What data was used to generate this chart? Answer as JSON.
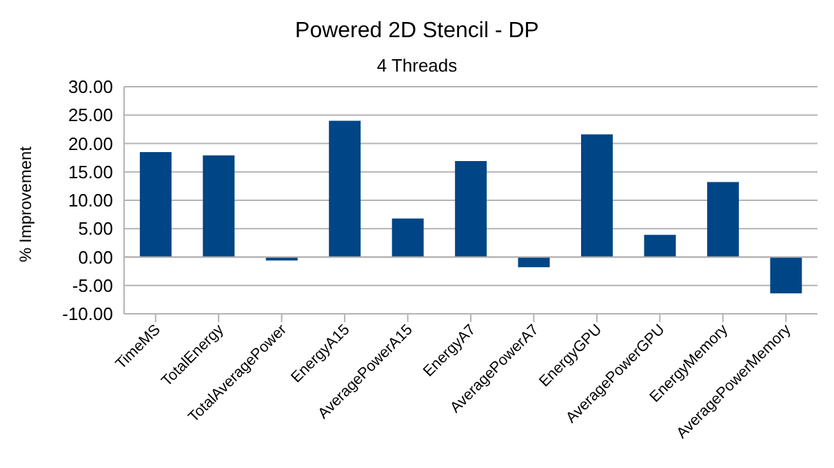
{
  "chart_data": {
    "type": "bar",
    "title": "Powered 2D Stencil - DP",
    "subtitle": "4 Threads",
    "ylabel": "% Improvement",
    "categories": [
      "TimeMS",
      "TotalEnergy",
      "TotalAveragePower",
      "EnergyA15",
      "AveragePowerA15",
      "EnergyA7",
      "AveragePowerA7",
      "EnergyGPU",
      "AveragePowerGPU",
      "EnergyMemory",
      "AveragePowerMemory"
    ],
    "values": [
      18.5,
      17.9,
      -0.6,
      24.0,
      6.8,
      16.9,
      -1.8,
      21.6,
      3.9,
      13.2,
      -6.4
    ],
    "color": "#004586",
    "ylim": [
      -10,
      30
    ],
    "yticks": [
      {
        "value": -10,
        "label": "-10.00"
      },
      {
        "value": -5,
        "label": "-5.00"
      },
      {
        "value": 0,
        "label": "0.00"
      },
      {
        "value": 5,
        "label": "5.00"
      },
      {
        "value": 10,
        "label": "10.00"
      },
      {
        "value": 15,
        "label": "15.00"
      },
      {
        "value": 20,
        "label": "20.00"
      },
      {
        "value": 25,
        "label": "25.00"
      },
      {
        "value": 30,
        "label": "30.00"
      }
    ],
    "grid": "y"
  }
}
